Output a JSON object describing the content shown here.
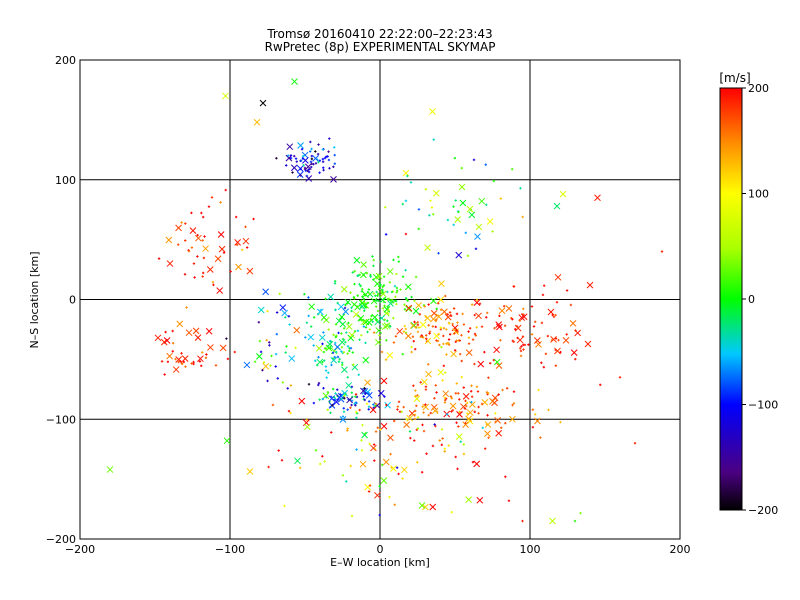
{
  "chart_data": {
    "type": "scatter",
    "title": "Tromsø 20160410 22:22:00–22:23:43",
    "subtitle": "RwPretec (8p) EXPERIMENTAL SKYMAP",
    "xlabel": "E–W location [km]",
    "ylabel": "N–S location [km]",
    "xlim": [
      -200,
      200
    ],
    "ylim": [
      -200,
      200
    ],
    "xticks": [
      -200,
      -100,
      0,
      100,
      200
    ],
    "yticks": [
      -200,
      -100,
      0,
      100,
      200
    ],
    "xtick_labels": [
      "−200",
      "−100",
      "0",
      "100",
      "200"
    ],
    "ytick_labels": [
      "−200",
      "−100",
      "0",
      "100",
      "200"
    ],
    "grid": true,
    "markers": [
      "plus",
      "x"
    ],
    "colorbar": {
      "label": "[m/s]",
      "min": -200,
      "max": 200,
      "ticks": [
        200,
        100,
        0,
        -100,
        -200
      ],
      "tick_labels": [
        "200",
        "100",
        "0",
        "−100",
        "−200"
      ],
      "colormap": "black-purple-blue-cyan-green-yellow-orange-red"
    },
    "clusters": [
      {
        "center": [
          0,
          0
        ],
        "spread": [
          12,
          14
        ],
        "count": 160,
        "velocity": 10,
        "velocity_spread": 25
      },
      {
        "center": [
          -30,
          -30
        ],
        "spread": [
          10,
          18
        ],
        "count": 110,
        "velocity": -15,
        "velocity_spread": 40
      },
      {
        "center": [
          -45,
          115
        ],
        "spread": [
          10,
          8
        ],
        "count": 70,
        "velocity": -120,
        "velocity_spread": 35
      },
      {
        "center": [
          -20,
          -85
        ],
        "spread": [
          12,
          8
        ],
        "count": 70,
        "velocity": -70,
        "velocity_spread": 50
      },
      {
        "center": [
          40,
          -25
        ],
        "spread": [
          18,
          12
        ],
        "count": 110,
        "velocity": 160,
        "velocity_spread": 35
      },
      {
        "center": [
          50,
          -90
        ],
        "spread": [
          28,
          14
        ],
        "count": 120,
        "velocity": 170,
        "velocity_spread": 30
      },
      {
        "center": [
          95,
          -30
        ],
        "spread": [
          25,
          20
        ],
        "count": 90,
        "velocity": 185,
        "velocity_spread": 15
      },
      {
        "center": [
          -115,
          40
        ],
        "spread": [
          15,
          20
        ],
        "count": 50,
        "velocity": 180,
        "velocity_spread": 25
      },
      {
        "center": [
          -125,
          -45
        ],
        "spread": [
          15,
          10
        ],
        "count": 40,
        "velocity": 185,
        "velocity_spread": 20
      },
      {
        "center": [
          45,
          80
        ],
        "spread": [
          25,
          20
        ],
        "count": 50,
        "velocity": 30,
        "velocity_spread": 80
      },
      {
        "center": [
          10,
          -120
        ],
        "spread": [
          40,
          35
        ],
        "count": 120,
        "velocity": 120,
        "velocity_spread": 90
      },
      {
        "center": [
          -70,
          -40
        ],
        "spread": [
          15,
          20
        ],
        "count": 40,
        "velocity": -60,
        "velocity_spread": 80
      }
    ],
    "outliers": [
      {
        "x": -180,
        "y": -142,
        "v": 30,
        "m": "x"
      },
      {
        "x": -102,
        "y": -118,
        "v": 10,
        "m": "x"
      },
      {
        "x": -57,
        "y": 182,
        "v": 0,
        "m": "x"
      },
      {
        "x": -78,
        "y": 164,
        "v": -200,
        "m": "x"
      },
      {
        "x": -103,
        "y": 170,
        "v": 80,
        "m": "x"
      },
      {
        "x": -82,
        "y": 148,
        "v": 130,
        "m": "x"
      },
      {
        "x": 35,
        "y": 157,
        "v": 90,
        "m": "x"
      },
      {
        "x": 145,
        "y": 85,
        "v": 190,
        "m": "x"
      },
      {
        "x": 122,
        "y": 88,
        "v": 80,
        "m": "x"
      },
      {
        "x": 118,
        "y": 78,
        "v": -20,
        "m": "x"
      },
      {
        "x": 188,
        "y": 40,
        "v": 190,
        "m": "plus"
      },
      {
        "x": 140,
        "y": 12,
        "v": 190,
        "m": "x"
      },
      {
        "x": 160,
        "y": -65,
        "v": 190,
        "m": "plus"
      },
      {
        "x": 170,
        "y": -120,
        "v": 190,
        "m": "plus"
      },
      {
        "x": 95,
        "y": -185,
        "v": 190,
        "m": "plus"
      },
      {
        "x": 115,
        "y": -185,
        "v": 60,
        "m": "x"
      },
      {
        "x": 130,
        "y": -185,
        "v": 10,
        "m": "plus"
      },
      {
        "x": 28,
        "y": -172,
        "v": 30,
        "m": "x"
      },
      {
        "x": -140,
        "y": 30,
        "v": 190,
        "m": "x"
      },
      {
        "x": -148,
        "y": -32,
        "v": 190,
        "m": "x"
      }
    ]
  }
}
